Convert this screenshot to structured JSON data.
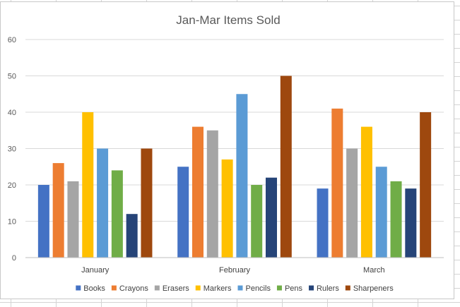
{
  "chart_data": {
    "type": "bar",
    "title": "Jan-Mar Items Sold",
    "xlabel": "",
    "ylabel": "",
    "ylim": [
      0,
      60
    ],
    "yticks": [
      "0",
      "10",
      "20",
      "30",
      "40",
      "50",
      "60"
    ],
    "grid": true,
    "legend_position": "bottom",
    "categories": [
      "January",
      "February",
      "March"
    ],
    "series": [
      {
        "name": "Books",
        "color": "#4472C4",
        "values": [
          20,
          25,
          19
        ]
      },
      {
        "name": "Crayons",
        "color": "#ED7D31",
        "values": [
          26,
          36,
          41
        ]
      },
      {
        "name": "Erasers",
        "color": "#A5A5A5",
        "values": [
          21,
          35,
          30
        ]
      },
      {
        "name": "Markers",
        "color": "#FFC000",
        "values": [
          40,
          27,
          36
        ]
      },
      {
        "name": "Pencils",
        "color": "#5B9BD5",
        "values": [
          30,
          45,
          25
        ]
      },
      {
        "name": "Pens",
        "color": "#70AD47",
        "values": [
          24,
          20,
          21
        ]
      },
      {
        "name": "Rulers",
        "color": "#264478",
        "values": [
          12,
          22,
          19
        ]
      },
      {
        "name": "Sharpeners",
        "color": "#9E480E",
        "values": [
          30,
          50,
          40
        ]
      }
    ]
  }
}
